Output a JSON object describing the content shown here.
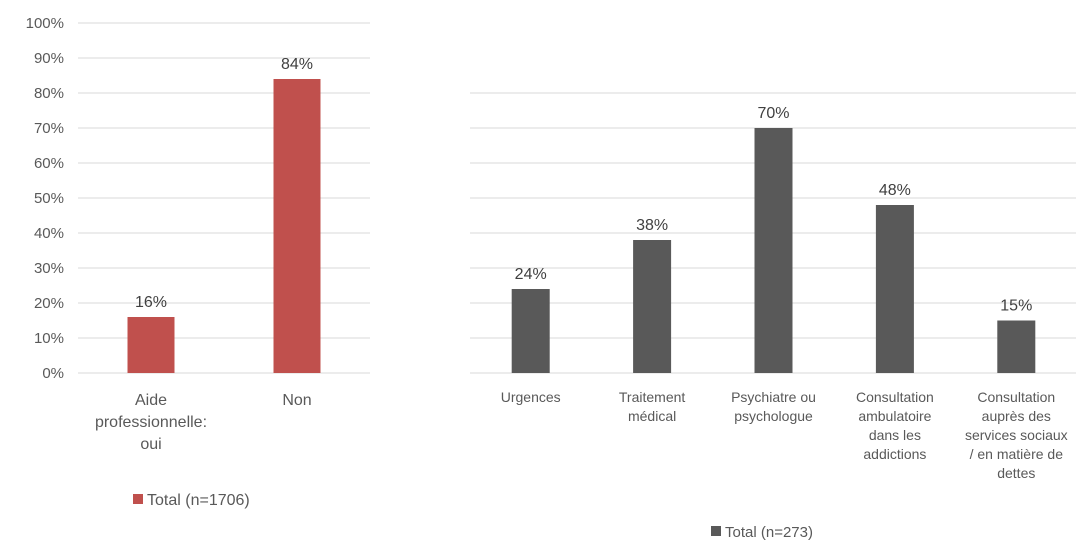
{
  "chart_data": [
    {
      "type": "bar",
      "categories": [
        [
          "Aide",
          "professionnelle:",
          "oui"
        ],
        [
          "Non"
        ]
      ],
      "series": [
        {
          "name": "Total (n=1706)",
          "values": [
            16,
            84
          ]
        }
      ],
      "data_labels": [
        "16%",
        "84%"
      ],
      "ylim": [
        0,
        100
      ],
      "yticks": [
        "0%",
        "10%",
        "20%",
        "30%",
        "40%",
        "50%",
        "60%",
        "70%",
        "80%",
        "90%",
        "100%"
      ],
      "grid": true,
      "legend": "bottom",
      "colors": [
        "#c0504d"
      ]
    },
    {
      "type": "bar",
      "categories": [
        [
          "Urgences"
        ],
        [
          "Traitement",
          "médical"
        ],
        [
          "Psychiatre ou",
          "psychologue"
        ],
        [
          "Consultation",
          "ambulatoire",
          "dans les",
          "addictions"
        ],
        [
          "Consultation",
          "auprès des",
          "services sociaux",
          "/ en matière de",
          "dettes"
        ]
      ],
      "series": [
        {
          "name": "Total (n=273)",
          "values": [
            24,
            38,
            70,
            48,
            15
          ]
        }
      ],
      "data_labels": [
        "24%",
        "38%",
        "70%",
        "48%",
        "15%"
      ],
      "ylim": [
        0,
        80
      ],
      "grid": true,
      "legend": "bottom",
      "colors": [
        "#595959"
      ]
    }
  ]
}
